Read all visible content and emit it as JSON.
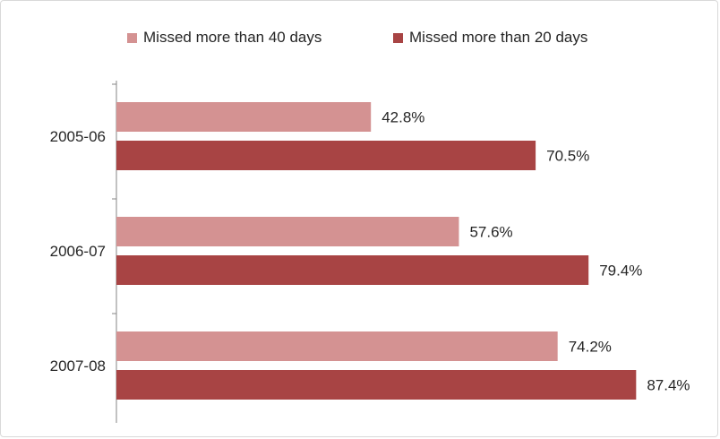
{
  "chart_data": {
    "type": "bar",
    "orientation": "horizontal",
    "title": "",
    "xlabel": "",
    "ylabel": "",
    "categories": [
      "2005-06",
      "2006-07",
      "2007-08"
    ],
    "series": [
      {
        "name": "Missed more than 40 days",
        "values": [
          42.8,
          57.6,
          74.2
        ],
        "labels": [
          "42.8%",
          "57.6%",
          "74.2%"
        ],
        "color": "#d49292"
      },
      {
        "name": "Missed more than 20 days",
        "values": [
          70.5,
          79.4,
          87.4
        ],
        "labels": [
          "70.5%",
          "79.4%",
          "87.4%"
        ],
        "color": "#a84444"
      }
    ],
    "xlim": [
      0,
      100
    ],
    "grid": false,
    "legend_position": "top"
  }
}
